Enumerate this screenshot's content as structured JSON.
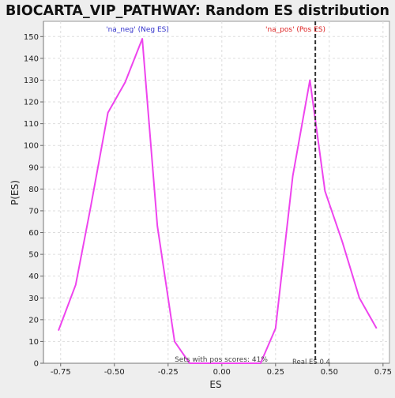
{
  "chart_data": {
    "type": "line",
    "title": "BIOCARTA_VIP_PATHWAY: Random ES distribution",
    "xlabel": "ES",
    "ylabel": "P(ES)",
    "xlim": [
      -0.83,
      0.78
    ],
    "ylim": [
      0,
      157
    ],
    "x_ticks": [
      -0.75,
      -0.5,
      -0.25,
      0.0,
      0.25,
      0.5,
      0.75
    ],
    "x_tick_labels": [
      "-0.75",
      "-0.50",
      "-0.25",
      "0.00",
      "0.25",
      "0.50",
      "0.75"
    ],
    "y_ticks": [
      0,
      10,
      20,
      30,
      40,
      50,
      60,
      70,
      80,
      90,
      100,
      110,
      120,
      130,
      140,
      150
    ],
    "y_tick_labels": [
      "0",
      "10",
      "20",
      "30",
      "40",
      "50",
      "60",
      "70",
      "80",
      "90",
      "100",
      "110",
      "120",
      "130",
      "140",
      "150"
    ],
    "grid": true,
    "series": [
      {
        "color": "#ee44ee",
        "x": [
          -0.76,
          -0.68,
          -0.61,
          -0.53,
          -0.45,
          -0.37,
          -0.3,
          -0.22,
          -0.15,
          -0.07,
          0.02,
          0.1,
          0.18,
          0.25,
          0.33,
          0.41,
          0.48,
          0.56,
          0.64,
          0.72
        ],
        "y": [
          15,
          36,
          72,
          115,
          129,
          149,
          63,
          10,
          0,
          0,
          0,
          0,
          0,
          16,
          86,
          130,
          79,
          56,
          30,
          16
        ]
      }
    ],
    "real_es": 0.435,
    "annotations": {
      "neg_label": "'na_neg' (Neg ES)",
      "pos_label": "'na_pos' (Pos ES)",
      "sets_text": "Sets with pos scores: 41%",
      "real_es_text": "Real ES 0.4"
    },
    "colors": {
      "line": "#ee44ee",
      "neg_label": "#3333cc",
      "pos_label": "#dd2222",
      "real_es_line": "#333333"
    }
  }
}
